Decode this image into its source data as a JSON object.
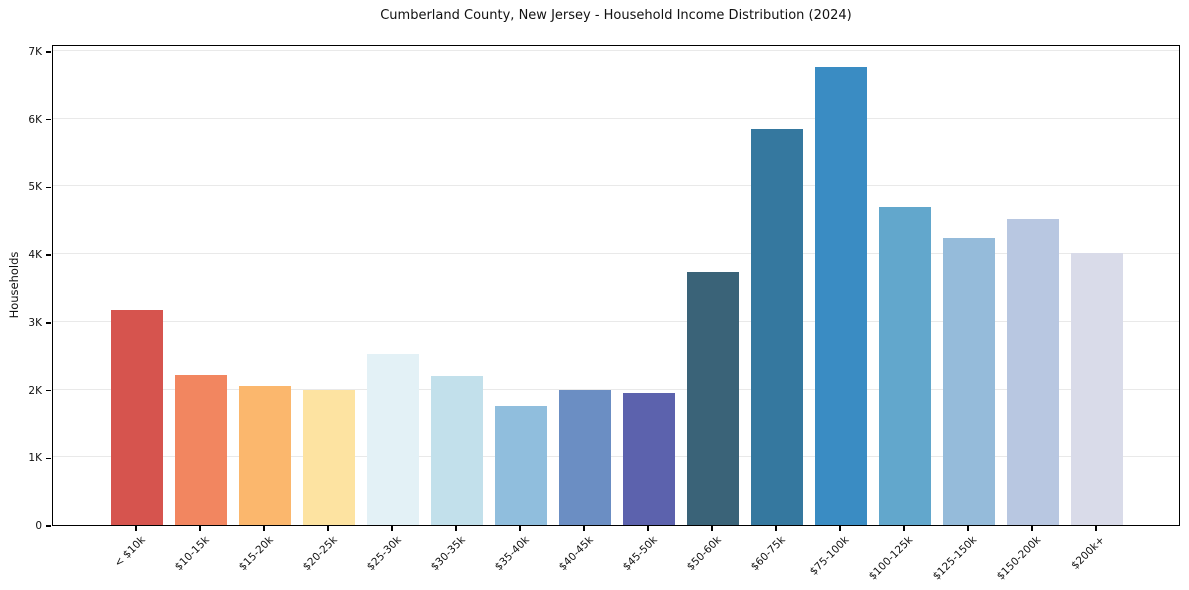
{
  "chart": {
    "title": "Cumberland County, New Jersey - Household Income Distribution (2024)",
    "ylabel": "Households"
  },
  "chart_data": {
    "type": "bar",
    "title": "Cumberland County, New Jersey - Household Income Distribution (2024)",
    "xlabel": "",
    "ylabel": "Households",
    "categories": [
      "< $10k",
      "$10-15k",
      "$15-20k",
      "$20-25k",
      "$25-30k",
      "$30-35k",
      "$35-40k",
      "$40-45k",
      "$45-50k",
      "$50-60k",
      "$60-75k",
      "$75-100k",
      "$100-125k",
      "$125-150k",
      "$150-200k",
      "$200k+"
    ],
    "values": [
      3180,
      2210,
      2050,
      2000,
      2520,
      2200,
      1750,
      2000,
      1950,
      3740,
      5850,
      6760,
      4690,
      4230,
      4510,
      4010
    ],
    "bar_colors": [
      "#d6544e",
      "#f28660",
      "#fbb76d",
      "#fde3a1",
      "#e3f1f6",
      "#c2e0eb",
      "#90bedd",
      "#6b8ec3",
      "#5c62ad",
      "#3a6378",
      "#35789f",
      "#3a8cc3",
      "#62a7cc",
      "#95bbda",
      "#b8c7e1",
      "#d9dbe9"
    ],
    "ylim": [
      0,
      7100
    ],
    "ytick_values": [
      0,
      1000,
      2000,
      3000,
      4000,
      5000,
      6000,
      7000
    ],
    "ytick_labels": [
      "0",
      "1K",
      "2K",
      "3K",
      "4K",
      "5K",
      "6K",
      "7K"
    ],
    "grid": "horizontal",
    "grid_color": "#e9e9e9",
    "legend_position": "none",
    "x_tick_rotation_deg": 45
  }
}
